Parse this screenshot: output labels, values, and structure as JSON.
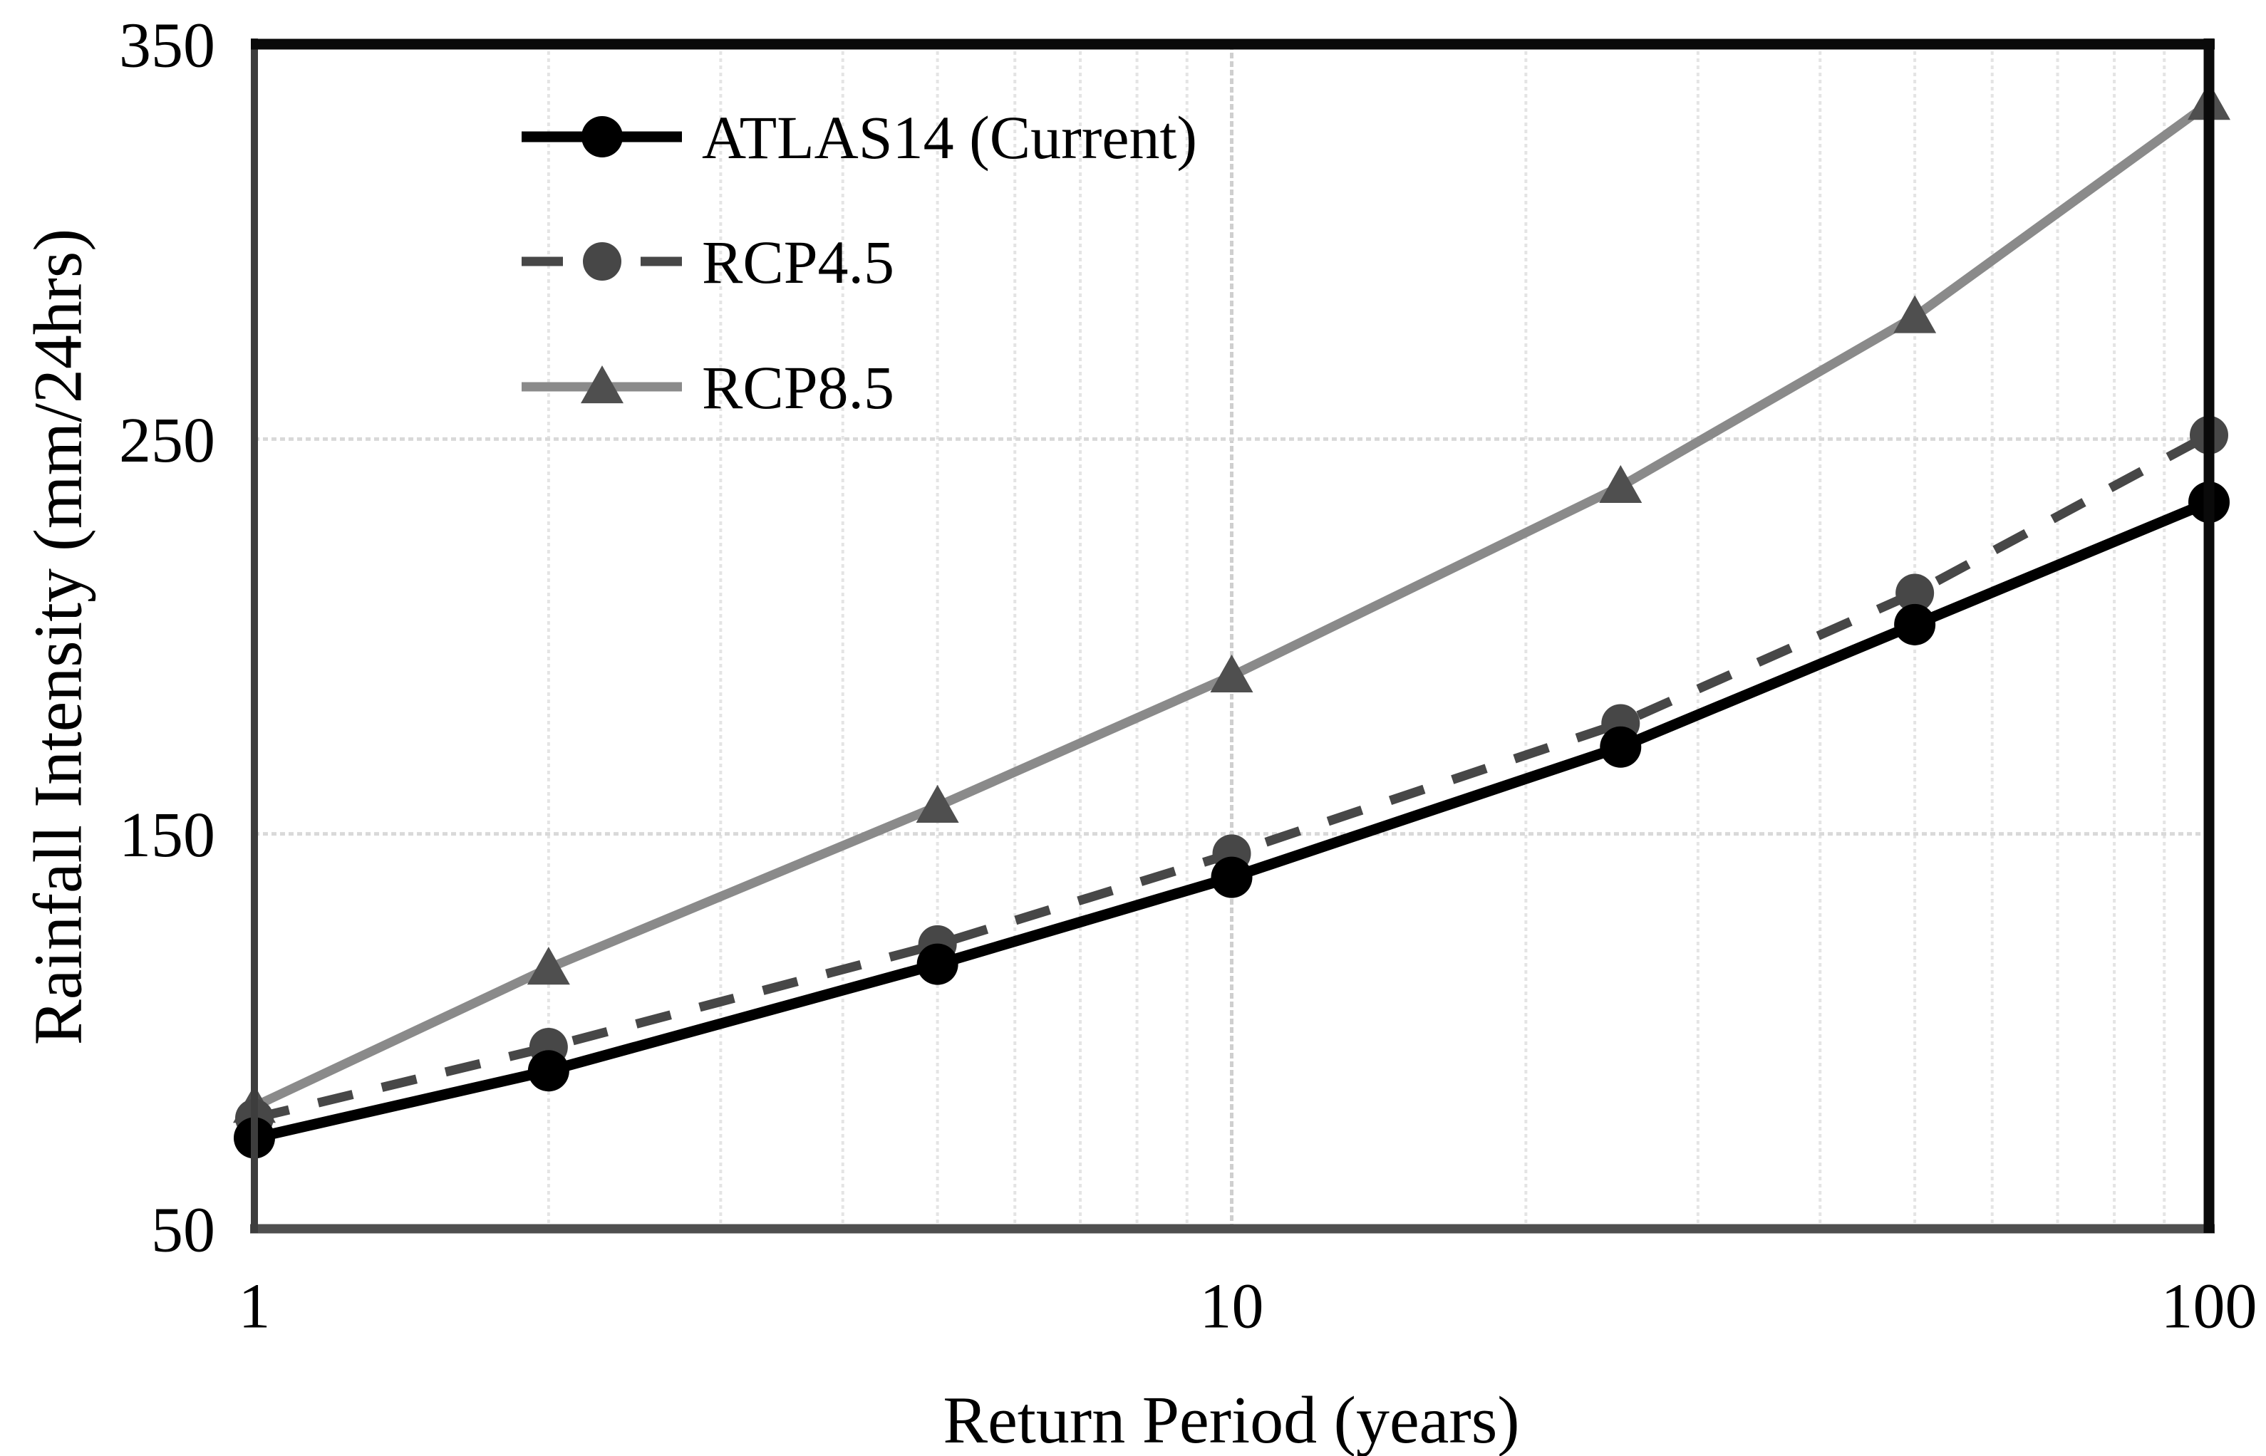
{
  "figure": {
    "background": "#ffffff"
  },
  "chart_data": {
    "type": "line",
    "x_scale": "log",
    "x": [
      1,
      2,
      5,
      10,
      25,
      50,
      100
    ],
    "xlabel": "Return Period (years)",
    "ylabel": "Rainfall Intensity (mm/24hrs)",
    "xlim": [
      1,
      100
    ],
    "ylim": [
      50,
      350
    ],
    "x_ticks": [
      1,
      10,
      100
    ],
    "y_ticks": [
      350,
      250,
      150,
      50
    ],
    "grid": {
      "x_minor_per_decade": [
        2,
        3,
        4,
        5,
        6,
        7,
        8,
        9
      ],
      "x_major": [
        10
      ],
      "y_lines": [
        150,
        250
      ]
    },
    "legend_position": "inside-top-left",
    "series": [
      {
        "name": "ATLAS14 (Current)",
        "values": [
          73,
          90,
          117,
          139,
          172,
          203,
          234
        ],
        "line_color": "#000000",
        "line_style": "solid",
        "line_width": 15,
        "marker": "circle",
        "marker_color": "#000000",
        "marker_size": 29
      },
      {
        "name": "RCP4.5",
        "values": [
          78,
          96,
          122,
          145,
          178,
          211,
          251
        ],
        "line_color": "#474747",
        "line_style": "dashed",
        "line_width": 13,
        "marker": "circle",
        "marker_color": "#474747",
        "marker_size": 27
      },
      {
        "name": "RCP8.5",
        "values": [
          81,
          116,
          157,
          190,
          238,
          281,
          335
        ],
        "line_color": "#8a8a8a",
        "line_style": "solid",
        "line_width": 13,
        "marker": "triangle",
        "marker_color": "#4f4f4f",
        "marker_size": 30
      }
    ],
    "axis_colors": {
      "top": "#0a0a0a",
      "right": "#0a0a0a",
      "left": "#3d3d3d",
      "bottom": "#4f4f4f"
    },
    "grid_colors": {
      "minor": "#e4e4e4",
      "major": "#cfcfcf",
      "horizontal": "#d9d9d9"
    },
    "text_color": "#000000",
    "tick_font_size": 90,
    "legend_font_size": 86
  }
}
